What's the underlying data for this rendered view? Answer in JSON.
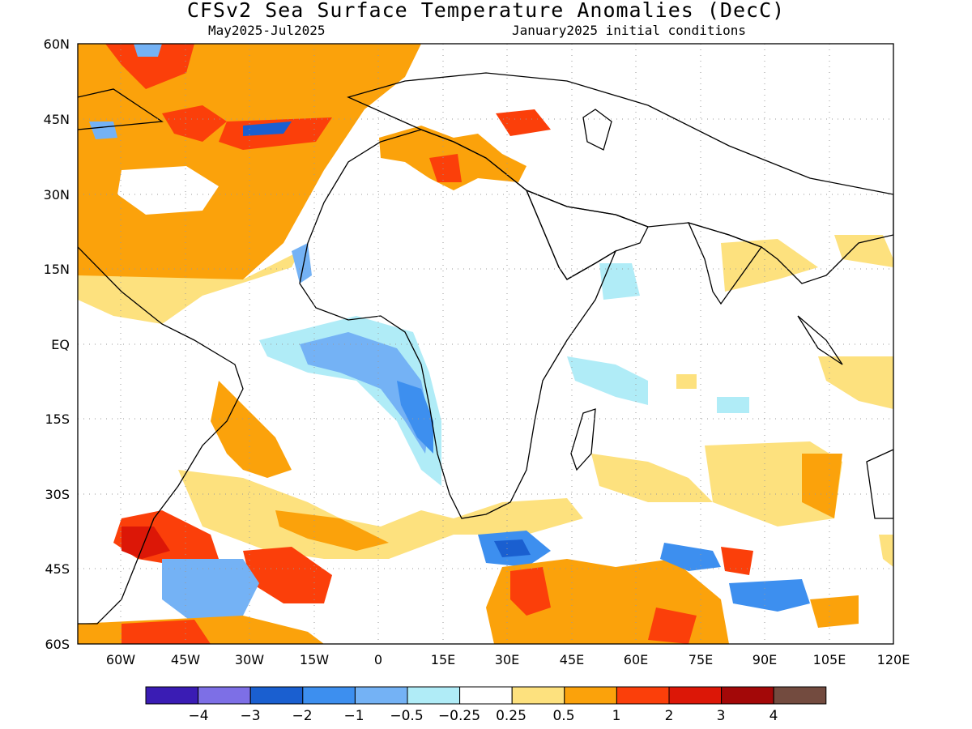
{
  "header": {
    "title": "CFSv2 Sea Surface Temperature Anomalies (DecC)",
    "period": "May2025-Jul2025",
    "init": "January2025 initial conditions"
  },
  "map": {
    "lat_labels": [
      "60N",
      "45N",
      "30N",
      "15N",
      "EQ",
      "15S",
      "30S",
      "45S",
      "60S"
    ],
    "lon_labels": [
      "60W",
      "45W",
      "30W",
      "15W",
      "0",
      "15E",
      "30E",
      "45E",
      "60E",
      "75E",
      "90E",
      "105E",
      "120E"
    ],
    "lon_range": [
      -70,
      120
    ],
    "lat_range": [
      -60,
      60
    ]
  },
  "colorbar": {
    "colors": [
      "#3a1cb4",
      "#7d6fe6",
      "#1a5fd0",
      "#3d8fef",
      "#74b2f5",
      "#b0ecf7",
      "#ffffff",
      "#fde17e",
      "#fba20b",
      "#fb3f0a",
      "#dc1707",
      "#a30808",
      "#734b3f"
    ],
    "labels": [
      "−4",
      "−3",
      "−2",
      "−1",
      "−0.5",
      "−0.25",
      "0.25",
      "0.5",
      "1",
      "2",
      "3",
      "4"
    ]
  }
}
